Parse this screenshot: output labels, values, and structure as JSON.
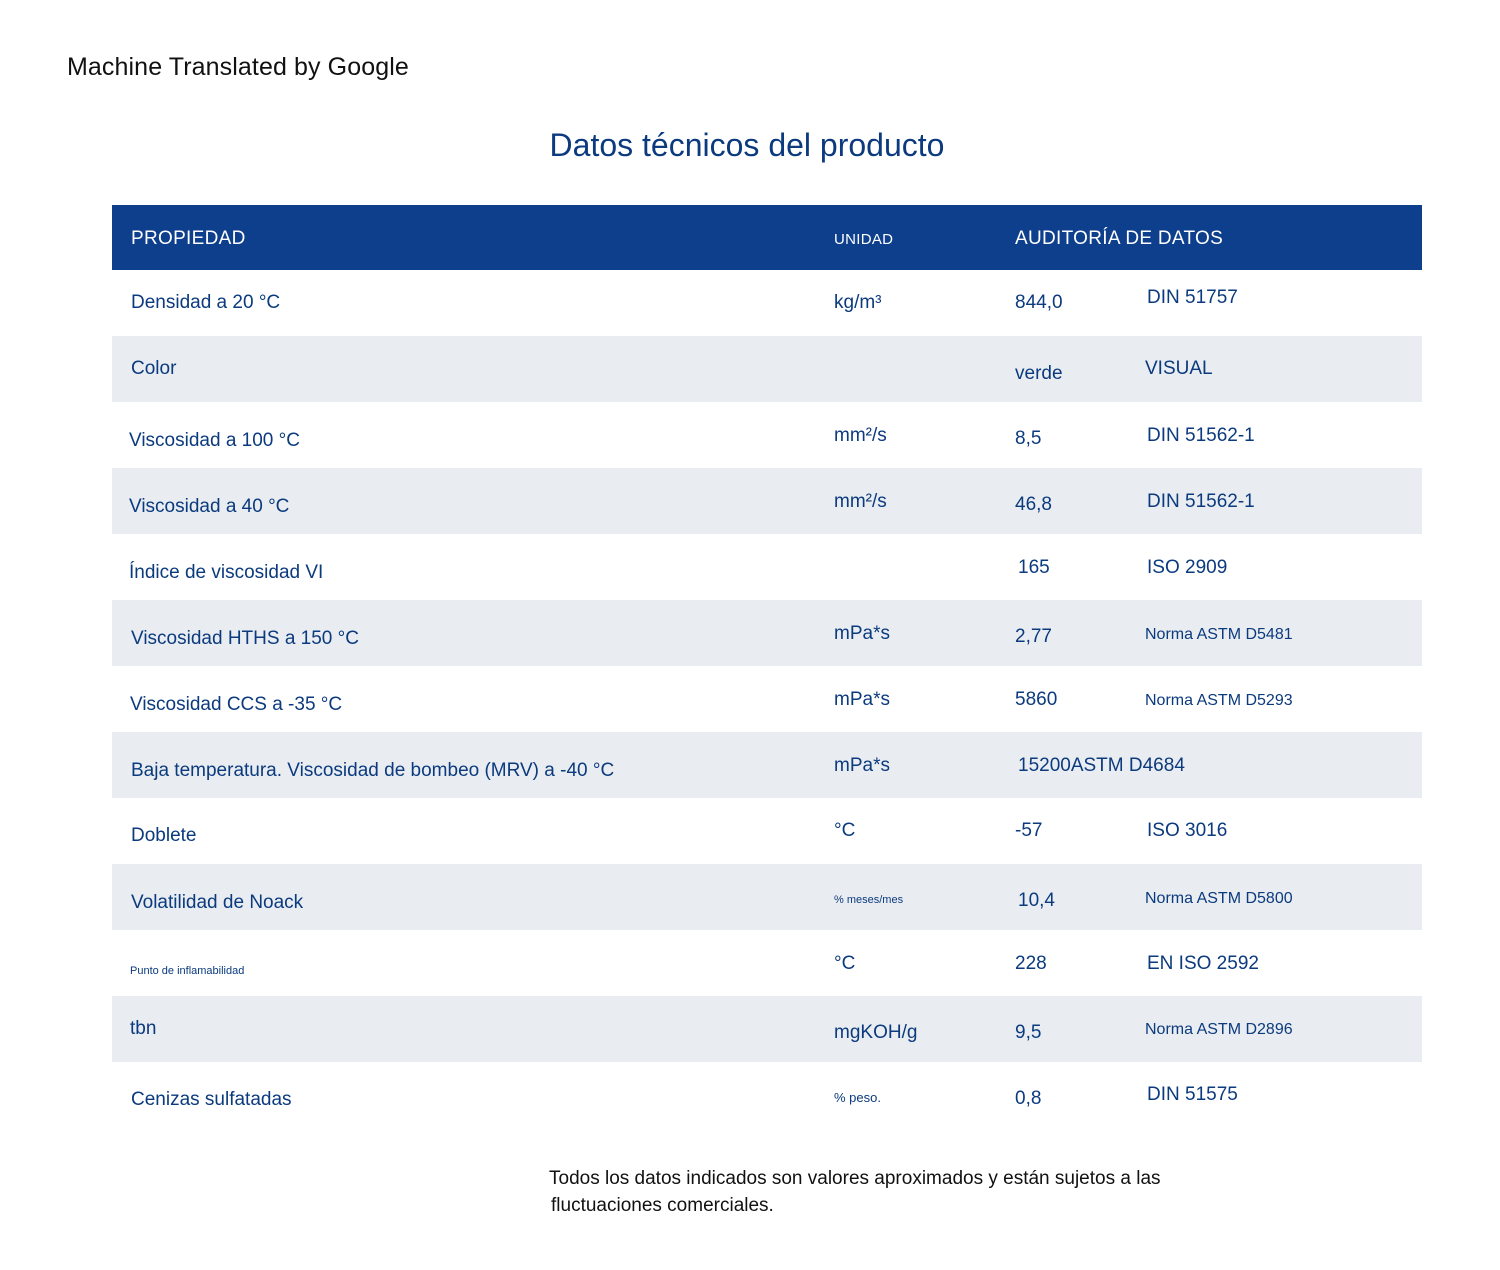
{
  "watermark": "Machine Translated by Google",
  "title": "Datos técnicos del producto",
  "table": {
    "headers": {
      "property": "PROPIEDAD",
      "unit": "UNIDAD",
      "audit": "AUDITORÍA DE DATOS"
    },
    "rows": [
      {
        "property": "Densidad a 20 °C",
        "unit": "kg/m³",
        "value": "844,0",
        "method": "DIN 51757"
      },
      {
        "property": "Color",
        "unit": "",
        "value": "verde",
        "method": "VISUAL"
      },
      {
        "property": "Viscosidad a 100 °C",
        "unit": "mm²/s",
        "value": "8,5",
        "method": "DIN 51562-1"
      },
      {
        "property": "Viscosidad a 40 °C",
        "unit": "mm²/s",
        "value": "46,8",
        "method": "DIN 51562-1"
      },
      {
        "property": "Índice de viscosidad VI",
        "unit": "",
        "value": "165",
        "method": "ISO 2909"
      },
      {
        "property": "Viscosidad HTHS a 150 °C",
        "unit": "mPa*s",
        "value": "2,77",
        "method": "Norma ASTM D5481"
      },
      {
        "property": "Viscosidad CCS a -35 °C",
        "unit": "mPa*s",
        "value": "5860",
        "method": "Norma ASTM D5293"
      },
      {
        "property": "Baja temperatura. Viscosidad de bombeo (MRV) a -40 °C",
        "unit": "mPa*s",
        "value": "15200ASTM D4684",
        "method": ""
      },
      {
        "property": "Doblete",
        "unit": "°C",
        "value": "-57",
        "method": "ISO 3016"
      },
      {
        "property": "Volatilidad de Noack",
        "unit": "% meses/mes",
        "value": "10,4",
        "method": "Norma ASTM D5800"
      },
      {
        "property": "Punto de inflamabilidad",
        "unit": "°C",
        "value": "228",
        "method": "EN ISO 2592"
      },
      {
        "property": "tbn",
        "unit": "mgKOH/g",
        "value": "9,5",
        "method": "Norma ASTM D2896"
      },
      {
        "property": "Cenizas sulfatadas",
        "unit": "% peso.",
        "value": "0,8",
        "method": "DIN 51575"
      }
    ]
  },
  "footnote_line1": "Todos los datos indicados son valores aproximados y están sujetos a las",
  "footnote_line2": "fluctuaciones comerciales.",
  "colors": {
    "header_bg": "#0d3f8c",
    "text_blue": "#0b3a7e",
    "alt_row_bg": "#e9edf1"
  }
}
